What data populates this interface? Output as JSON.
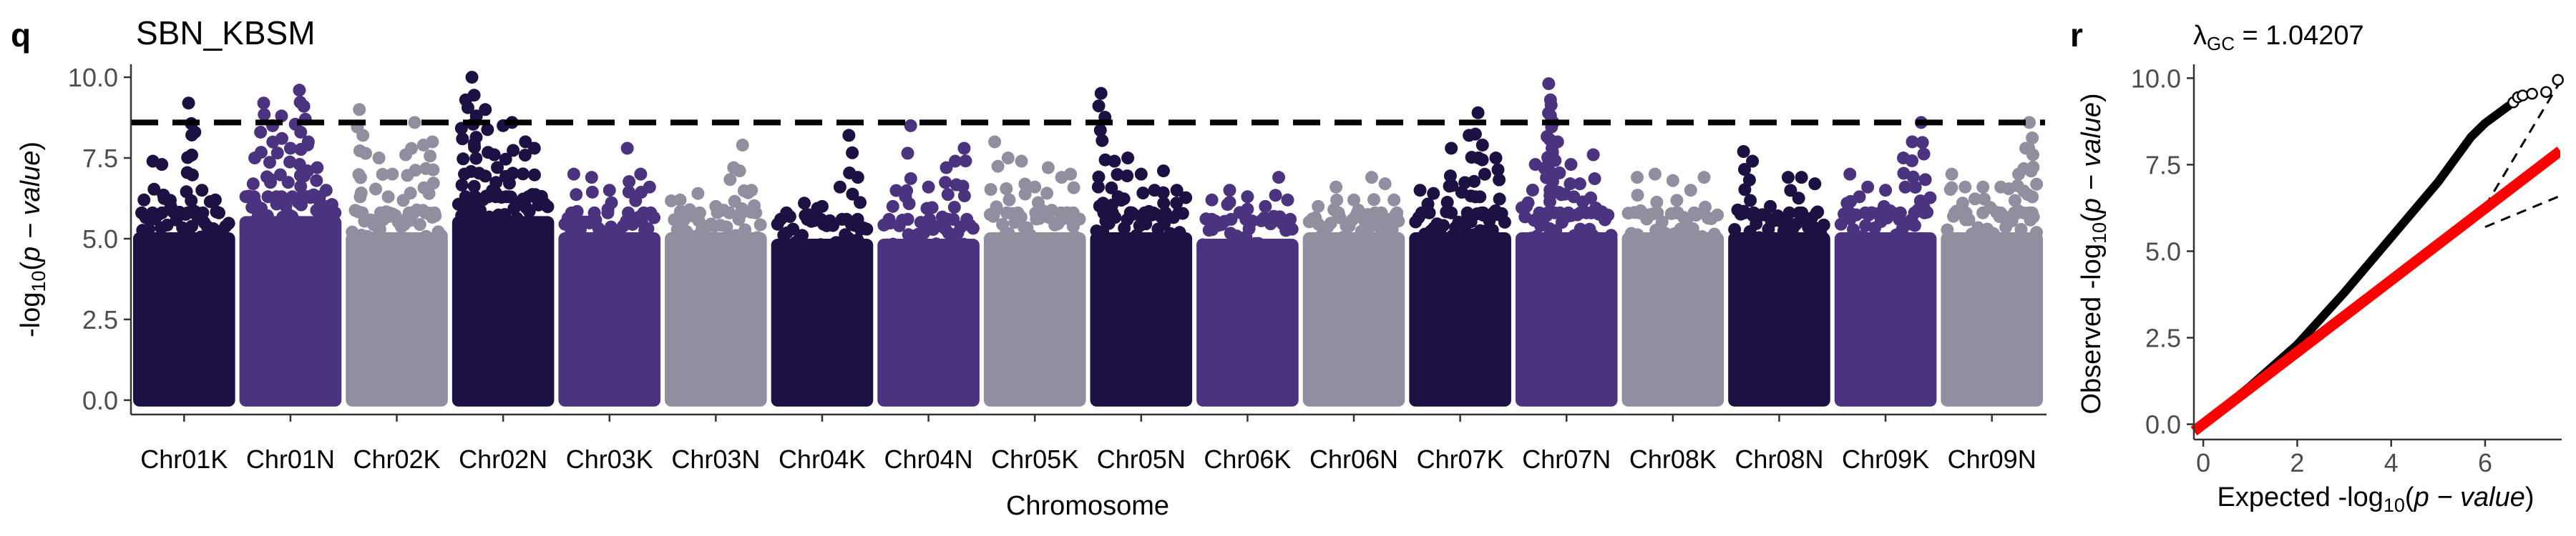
{
  "panel_labels": [
    "q",
    "r"
  ],
  "chart_data": [
    {
      "type": "scatter",
      "subtype": "manhattan",
      "title": "SBN_KBSM",
      "xlabel": "Chromosome",
      "ylabel_prefix": "-log",
      "ylabel_sub": "10",
      "ylabel_rest": "(",
      "ylabel_italic": "p − value",
      "ylabel_close": ")",
      "ylim": [
        -0.4,
        10.4
      ],
      "yticks": [
        "0.0",
        "2.5",
        "5.0",
        "7.5",
        "10.0"
      ],
      "ytick_values": [
        0,
        2.5,
        5,
        7.5,
        10
      ],
      "threshold": 8.6,
      "threshold_style": "dashed",
      "grid": false,
      "colors": [
        "#1d1042",
        "#4c3380",
        "#918f9f"
      ],
      "categories": [
        "Chr01K",
        "Chr01N",
        "Chr02K",
        "Chr02N",
        "Chr03K",
        "Chr03N",
        "Chr04K",
        "Chr04N",
        "Chr05K",
        "Chr05N",
        "Chr06K",
        "Chr06N",
        "Chr07K",
        "Chr07N",
        "Chr08K",
        "Chr08N",
        "Chr09K",
        "Chr09N"
      ],
      "series": [
        {
          "chromosome": "Chr01K",
          "color_index": 0,
          "band_top": 5.0,
          "peaks": [
            [
              0.05,
              6.2
            ],
            [
              0.15,
              7.4
            ],
            [
              0.25,
              7.3
            ],
            [
              0.35,
              6.0
            ],
            [
              0.55,
              9.2
            ],
            [
              0.62,
              8.3
            ],
            [
              0.7,
              6.5
            ],
            [
              0.85,
              6.2
            ]
          ]
        },
        {
          "chromosome": "Chr01N",
          "color_index": 1,
          "band_top": 5.5,
          "peaks": [
            [
              0.1,
              7.5
            ],
            [
              0.2,
              9.2
            ],
            [
              0.3,
              8.5
            ],
            [
              0.4,
              8.8
            ],
            [
              0.5,
              7.8
            ],
            [
              0.6,
              9.6
            ],
            [
              0.65,
              9.1
            ],
            [
              0.7,
              8.0
            ],
            [
              0.8,
              7.2
            ],
            [
              0.9,
              6.5
            ]
          ]
        },
        {
          "chromosome": "Chr02K",
          "color_index": 2,
          "band_top": 5.0,
          "peaks": [
            [
              0.08,
              9.0
            ],
            [
              0.12,
              8.2
            ],
            [
              0.3,
              7.5
            ],
            [
              0.45,
              7.0
            ],
            [
              0.6,
              7.6
            ],
            [
              0.7,
              8.6
            ],
            [
              0.8,
              7.9
            ],
            [
              0.9,
              8.0
            ]
          ]
        },
        {
          "chromosome": "Chr02N",
          "color_index": 0,
          "band_top": 5.5,
          "peaks": [
            [
              0.08,
              9.3
            ],
            [
              0.15,
              10.0
            ],
            [
              0.2,
              8.8
            ],
            [
              0.3,
              9.0
            ],
            [
              0.4,
              7.6
            ],
            [
              0.5,
              8.5
            ],
            [
              0.6,
              8.6
            ],
            [
              0.75,
              8.0
            ],
            [
              0.85,
              7.8
            ]
          ]
        },
        {
          "chromosome": "Chr03K",
          "color_index": 1,
          "band_top": 5.0,
          "peaks": [
            [
              0.1,
              7.0
            ],
            [
              0.3,
              6.9
            ],
            [
              0.5,
              6.5
            ],
            [
              0.7,
              7.8
            ],
            [
              0.85,
              7.0
            ],
            [
              0.95,
              6.6
            ]
          ]
        },
        {
          "chromosome": "Chr03N",
          "color_index": 2,
          "band_top": 5.0,
          "peaks": [
            [
              0.1,
              6.2
            ],
            [
              0.3,
              6.4
            ],
            [
              0.5,
              6.0
            ],
            [
              0.7,
              7.2
            ],
            [
              0.8,
              7.9
            ],
            [
              0.9,
              6.5
            ]
          ]
        },
        {
          "chromosome": "Chr04K",
          "color_index": 0,
          "band_top": 4.8,
          "peaks": [
            [
              0.1,
              5.8
            ],
            [
              0.3,
              6.1
            ],
            [
              0.5,
              6.0
            ],
            [
              0.7,
              6.6
            ],
            [
              0.8,
              8.2
            ],
            [
              0.9,
              6.9
            ]
          ]
        },
        {
          "chromosome": "Chr04N",
          "color_index": 1,
          "band_top": 4.8,
          "peaks": [
            [
              0.1,
              6.0
            ],
            [
              0.3,
              8.5
            ],
            [
              0.5,
              6.6
            ],
            [
              0.7,
              7.2
            ],
            [
              0.8,
              7.4
            ],
            [
              0.9,
              7.8
            ]
          ]
        },
        {
          "chromosome": "Chr05K",
          "color_index": 2,
          "band_top": 5.0,
          "peaks": [
            [
              0.05,
              8.0
            ],
            [
              0.2,
              7.5
            ],
            [
              0.35,
              7.4
            ],
            [
              0.5,
              6.6
            ],
            [
              0.65,
              7.2
            ],
            [
              0.8,
              6.9
            ],
            [
              0.9,
              7.0
            ]
          ]
        },
        {
          "chromosome": "Chr05N",
          "color_index": 0,
          "band_top": 5.0,
          "peaks": [
            [
              0.05,
              9.5
            ],
            [
              0.2,
              7.4
            ],
            [
              0.35,
              7.5
            ],
            [
              0.5,
              7.0
            ],
            [
              0.65,
              6.5
            ],
            [
              0.75,
              7.1
            ],
            [
              0.9,
              6.5
            ]
          ]
        },
        {
          "chromosome": "Chr06K",
          "color_index": 1,
          "band_top": 4.8,
          "peaks": [
            [
              0.1,
              6.2
            ],
            [
              0.3,
              6.5
            ],
            [
              0.5,
              6.3
            ],
            [
              0.7,
              6.0
            ],
            [
              0.85,
              6.9
            ],
            [
              0.95,
              6.2
            ]
          ]
        },
        {
          "chromosome": "Chr06N",
          "color_index": 2,
          "band_top": 5.0,
          "peaks": [
            [
              0.1,
              6.0
            ],
            [
              0.3,
              6.6
            ],
            [
              0.5,
              6.2
            ],
            [
              0.7,
              6.9
            ],
            [
              0.85,
              6.7
            ],
            [
              0.95,
              6.2
            ]
          ]
        },
        {
          "chromosome": "Chr07K",
          "color_index": 0,
          "band_top": 5.0,
          "peaks": [
            [
              0.05,
              6.5
            ],
            [
              0.2,
              6.4
            ],
            [
              0.4,
              7.8
            ],
            [
              0.6,
              8.2
            ],
            [
              0.7,
              8.9
            ],
            [
              0.75,
              7.9
            ],
            [
              0.9,
              7.5
            ]
          ]
        },
        {
          "chromosome": "Chr07N",
          "color_index": 1,
          "band_top": 5.0,
          "peaks": [
            [
              0.05,
              6.0
            ],
            [
              0.15,
              7.3
            ],
            [
              0.3,
              9.8
            ],
            [
              0.32,
              9.3
            ],
            [
              0.35,
              8.6
            ],
            [
              0.4,
              8.0
            ],
            [
              0.55,
              7.3
            ],
            [
              0.65,
              6.7
            ],
            [
              0.8,
              7.6
            ]
          ]
        },
        {
          "chromosome": "Chr08K",
          "color_index": 2,
          "band_top": 5.0,
          "peaks": [
            [
              0.1,
              6.9
            ],
            [
              0.3,
              7.0
            ],
            [
              0.5,
              6.8
            ],
            [
              0.7,
              6.5
            ],
            [
              0.85,
              6.9
            ]
          ]
        },
        {
          "chromosome": "Chr08N",
          "color_index": 0,
          "band_top": 5.0,
          "peaks": [
            [
              0.1,
              7.7
            ],
            [
              0.2,
              7.4
            ],
            [
              0.4,
              6.0
            ],
            [
              0.6,
              6.9
            ],
            [
              0.75,
              6.9
            ],
            [
              0.9,
              6.7
            ]
          ]
        },
        {
          "chromosome": "Chr09K",
          "color_index": 1,
          "band_top": 5.0,
          "peaks": [
            [
              0.1,
              7.0
            ],
            [
              0.3,
              6.6
            ],
            [
              0.5,
              6.5
            ],
            [
              0.7,
              7.5
            ],
            [
              0.8,
              8.0
            ],
            [
              0.9,
              8.6
            ]
          ]
        },
        {
          "chromosome": "Chr09N",
          "color_index": 2,
          "band_top": 5.0,
          "peaks": [
            [
              0.05,
              7.0
            ],
            [
              0.2,
              6.6
            ],
            [
              0.4,
              6.6
            ],
            [
              0.6,
              6.6
            ],
            [
              0.8,
              7.0
            ],
            [
              0.88,
              7.8
            ],
            [
              0.92,
              8.6
            ],
            [
              0.96,
              7.6
            ]
          ]
        }
      ]
    },
    {
      "type": "scatter",
      "subtype": "qq",
      "lambda_symbol": "λ",
      "lambda_sub": "GC",
      "lambda_value": " = 1.04207",
      "xlabel_prefix": "Expected -log",
      "xlabel_sub": "10",
      "xlabel_rest": "(",
      "xlabel_italic": "p − value",
      "xlabel_close": ")",
      "ylabel_prefix": "Observed -log",
      "ylabel_sub": "10",
      "ylabel_rest": "(",
      "ylabel_italic": "p − value",
      "ylabel_close": ")",
      "xlim": [
        -0.2,
        7.6
      ],
      "ylim": [
        -0.4,
        10.4
      ],
      "xticks": [
        "0",
        "2",
        "4",
        "6"
      ],
      "xtick_values": [
        0,
        2,
        4,
        6
      ],
      "yticks": [
        "0.0",
        "2.5",
        "5.0",
        "7.5",
        "10.0"
      ],
      "ytick_values": [
        0,
        2.5,
        5,
        7.5,
        10
      ],
      "reference_line": {
        "color": "#ff0000",
        "x": [
          -0.2,
          7.6
        ],
        "y": [
          -0.2,
          7.9
        ]
      },
      "confidence_bands": {
        "style": "dashed",
        "upper": [
          [
            6.0,
            6.3
          ],
          [
            7.6,
            9.9
          ]
        ],
        "lower": [
          [
            6.0,
            5.7
          ],
          [
            7.6,
            6.6
          ]
        ]
      },
      "observed_curve": [
        [
          0,
          0
        ],
        [
          1,
          1.1
        ],
        [
          2,
          2.3
        ],
        [
          3,
          3.8
        ],
        [
          4,
          5.4
        ],
        [
          5,
          7.0
        ],
        [
          5.7,
          8.3
        ],
        [
          6.0,
          8.7
        ],
        [
          6.3,
          9.0
        ],
        [
          6.5,
          9.2
        ]
      ],
      "outlier_points": [
        [
          6.6,
          9.3
        ],
        [
          6.7,
          9.45
        ],
        [
          6.8,
          9.5
        ],
        [
          7.0,
          9.55
        ],
        [
          7.3,
          9.6
        ],
        [
          7.55,
          9.95
        ]
      ]
    }
  ]
}
